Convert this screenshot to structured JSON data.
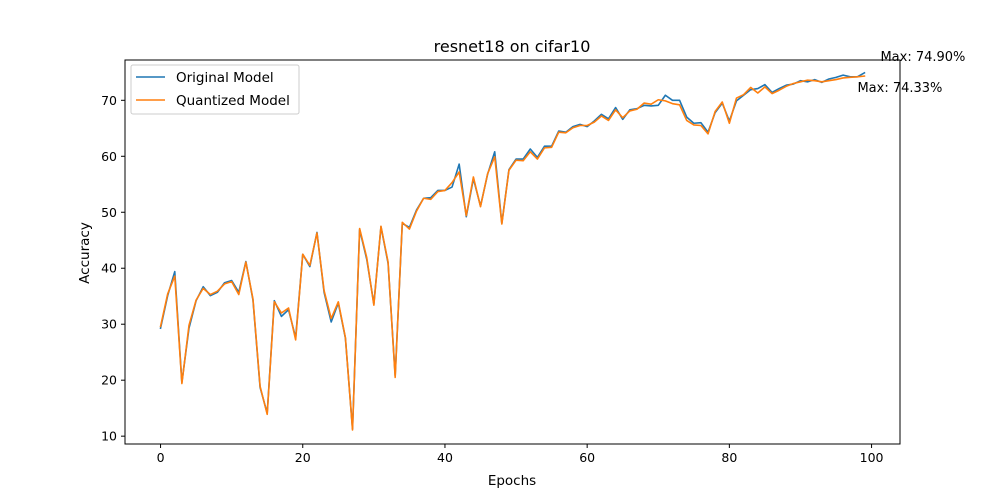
{
  "chart_data": {
    "type": "line",
    "title": "resnet18 on cifar10",
    "xlabel": "Epochs",
    "ylabel": "Accuracy",
    "xlim": [
      -5,
      104
    ],
    "ylim": [
      8.6,
      77.2
    ],
    "xticks": [
      0,
      20,
      40,
      60,
      80,
      100
    ],
    "yticks": [
      10,
      20,
      30,
      40,
      50,
      60,
      70
    ],
    "grid": false,
    "legend_position": "upper left",
    "series": [
      {
        "name": "Original Model",
        "color": "#1f77b4",
        "values": [
          29.3,
          35.1,
          39.4,
          19.6,
          29.3,
          34.2,
          36.7,
          35.1,
          35.7,
          37.4,
          37.8,
          35.7,
          41.2,
          34.3,
          18.7,
          14.1,
          34.2,
          31.4,
          32.6,
          27.6,
          42.5,
          40.3,
          46.4,
          35.7,
          30.4,
          33.8,
          27.5,
          11.3,
          46.9,
          41.6,
          33.6,
          47.4,
          40.9,
          20.8,
          48.0,
          47.3,
          50.4,
          52.5,
          52.6,
          53.9,
          53.9,
          54.5,
          58.6,
          49.2,
          56.0,
          51.1,
          56.8,
          60.8,
          48.0,
          57.6,
          59.5,
          59.5,
          61.3,
          59.8,
          61.8,
          61.8,
          64.5,
          64.3,
          65.3,
          65.7,
          65.3,
          66.3,
          67.5,
          66.7,
          68.7,
          66.6,
          68.3,
          68.5,
          69.1,
          69.0,
          69.1,
          70.9,
          70.0,
          70.0,
          67.0,
          65.9,
          66.0,
          64.3,
          67.8,
          69.5,
          66.3,
          69.9,
          70.9,
          71.9,
          72.1,
          72.8,
          71.4,
          72.1,
          72.7,
          72.9,
          73.5,
          73.3,
          73.7,
          73.2,
          73.8,
          74.1,
          74.5,
          74.2,
          74.2,
          74.9
        ]
      },
      {
        "name": "Quantized Model",
        "color": "#ff7f0e",
        "values": [
          29.6,
          35.4,
          38.6,
          19.4,
          29.8,
          34.3,
          36.4,
          35.3,
          35.9,
          37.2,
          37.6,
          35.3,
          41.1,
          34.5,
          18.9,
          13.9,
          34.0,
          32.0,
          32.9,
          27.2,
          42.5,
          40.5,
          46.3,
          36.0,
          31.0,
          34.0,
          27.6,
          11.1,
          47.1,
          41.9,
          33.4,
          47.5,
          41.1,
          20.5,
          48.2,
          47.0,
          50.2,
          52.5,
          52.3,
          53.7,
          53.9,
          55.3,
          57.2,
          49.4,
          56.3,
          51.0,
          56.9,
          59.9,
          47.9,
          57.5,
          59.3,
          59.2,
          60.8,
          59.5,
          61.5,
          61.6,
          64.3,
          64.2,
          65.1,
          65.5,
          65.5,
          66.1,
          67.2,
          66.4,
          68.3,
          66.9,
          68.1,
          68.4,
          69.5,
          69.3,
          70.1,
          69.9,
          69.4,
          69.2,
          66.4,
          65.6,
          65.5,
          64.0,
          68.0,
          69.7,
          65.9,
          70.4,
          71.0,
          72.3,
          71.3,
          72.4,
          71.2,
          71.8,
          72.5,
          73.0,
          73.3,
          73.6,
          73.5,
          73.3,
          73.5,
          73.7,
          74.0,
          74.1,
          74.2,
          74.33
        ]
      }
    ],
    "annotations": [
      {
        "text": "Max: 74.90%",
        "x": 99,
        "y": 74.9
      },
      {
        "text": "Max: 74.33%",
        "x": 99,
        "y": 74.33
      }
    ]
  }
}
